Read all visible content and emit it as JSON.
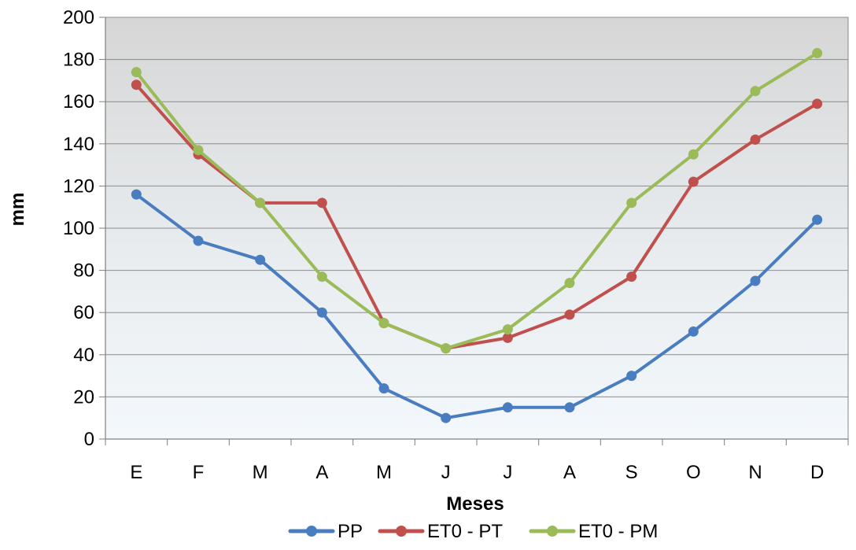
{
  "chart_data": {
    "type": "line",
    "categories": [
      "E",
      "F",
      "M",
      "A",
      "M",
      "J",
      "J",
      "A",
      "S",
      "O",
      "N",
      "D"
    ],
    "series": [
      {
        "name": "PP",
        "color": "#4a7dbf",
        "values": [
          116,
          94,
          85,
          60,
          24,
          10,
          15,
          15,
          30,
          51,
          75,
          104
        ]
      },
      {
        "name": "ET0 - PT",
        "color": "#c0504d",
        "values": [
          168,
          135,
          112,
          112,
          55,
          43,
          48,
          59,
          77,
          122,
          142,
          159
        ]
      },
      {
        "name": "ET0 - PM",
        "color": "#9bbb59",
        "values": [
          174,
          137,
          112,
          77,
          55,
          43,
          52,
          74,
          112,
          135,
          165,
          183
        ]
      }
    ],
    "xlabel": "Meses",
    "ylabel": "mm",
    "ylim": [
      0,
      200
    ],
    "yticks": [
      0,
      20,
      40,
      60,
      80,
      100,
      120,
      140,
      160,
      180,
      200
    ],
    "grid": "horizontal",
    "legend_position": "bottom",
    "plot_background": "gradient gray-to-light-blue"
  }
}
